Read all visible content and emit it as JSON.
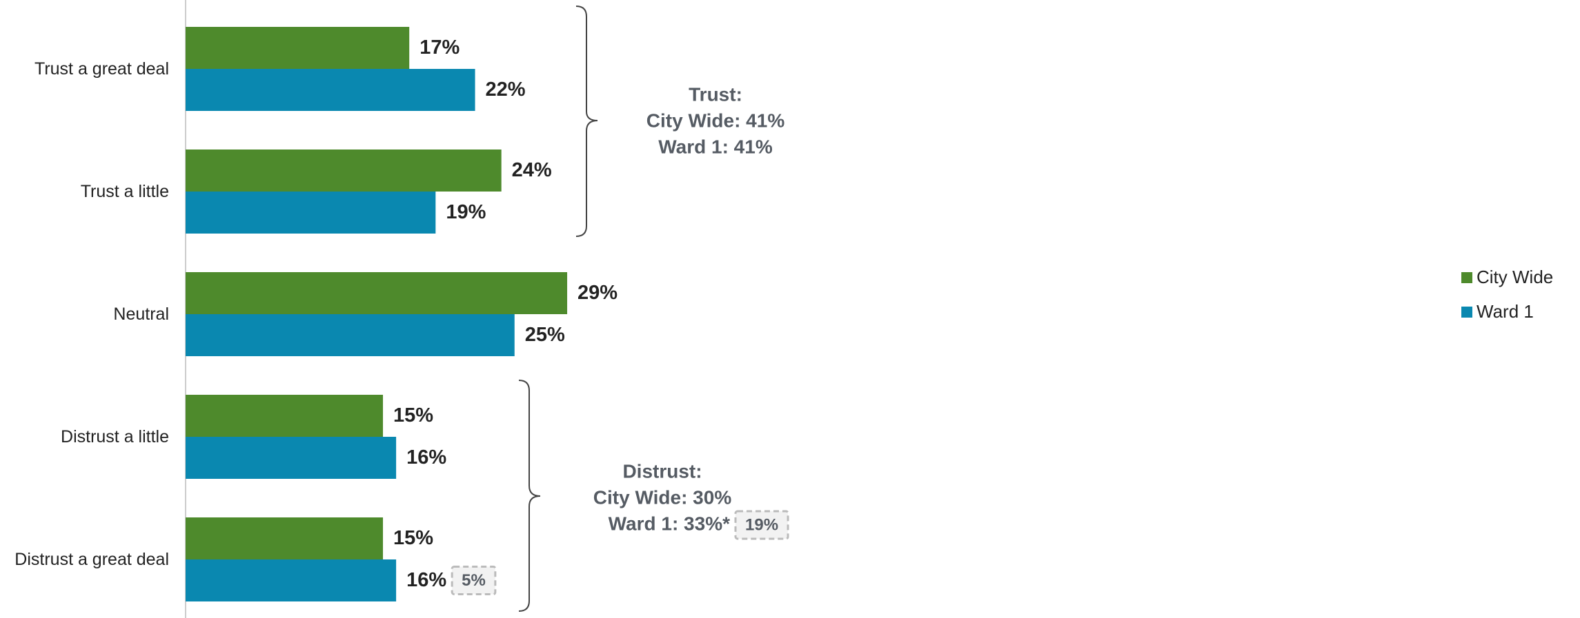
{
  "chart_data": {
    "type": "bar",
    "orientation": "horizontal",
    "categories": [
      "Trust a great deal",
      "Trust a little",
      "Neutral",
      "Distrust a little",
      "Distrust a great deal"
    ],
    "series": [
      {
        "name": "City Wide",
        "color": "#4e8a2c",
        "values": [
          17,
          24,
          29,
          15,
          15
        ],
        "value_labels": [
          "17%",
          "24%",
          "29%",
          "15%",
          "15%"
        ]
      },
      {
        "name": "Ward 1",
        "color": "#0a88b0",
        "values": [
          22,
          19,
          25,
          16,
          16
        ],
        "value_labels": [
          "22%",
          "19%",
          "25%",
          "16%",
          "16%"
        ]
      }
    ],
    "xlim": [
      0,
      100
    ],
    "legend": "right",
    "annotations": [
      {
        "lines": [
          "Trust:",
          "City Wide: 41%",
          "Ward 1: 41%"
        ]
      },
      {
        "lines": [
          "Distrust:",
          "City Wide: 30%",
          "Ward 1: 33%*"
        ],
        "box": "19%"
      },
      {
        "box": "5%"
      }
    ]
  }
}
